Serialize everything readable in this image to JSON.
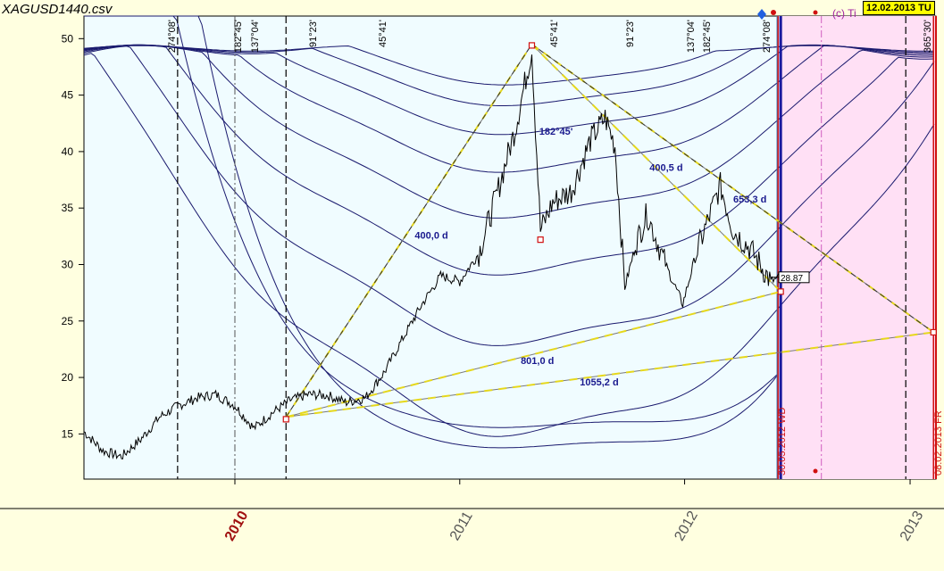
{
  "window": {
    "file_title": "XAGUSD1440.csv",
    "date_badge": "12.02.2013 TU",
    "copyright": "(c) Ti"
  },
  "colors": {
    "background": "#ffffe0",
    "plot_background": "#f0fcff",
    "arc": "#1a1a6e",
    "trendline": "#e6d81c",
    "forecast_zone": "#ffe0f5",
    "marker_red": "#d01010",
    "label_blue": "#1a1a8e"
  },
  "chart_data": {
    "type": "line",
    "title": "",
    "xlabel": "",
    "ylabel": "",
    "ylim": [
      11,
      52
    ],
    "xlim": [
      "2009-05-01",
      "2013-02-12"
    ],
    "y_ticks": [
      15,
      20,
      25,
      30,
      35,
      40,
      45,
      50
    ],
    "x_ticks": [
      {
        "label": "2010",
        "date": "2010-01-01",
        "highlight": true
      },
      {
        "label": "2011",
        "date": "2011-01-01",
        "highlight": false
      },
      {
        "label": "2012",
        "date": "2012-01-01",
        "highlight": false
      },
      {
        "label": "2013",
        "date": "2013-01-01",
        "highlight": false
      }
    ],
    "price_series": {
      "name": "",
      "points": [
        [
          "2009-05-01",
          15.2
        ],
        [
          "2009-06-01",
          13.5
        ],
        [
          "2009-07-01",
          13.0
        ],
        [
          "2009-08-01",
          14.5
        ],
        [
          "2009-09-01",
          16.5
        ],
        [
          "2009-10-01",
          17.5
        ],
        [
          "2009-11-01",
          18.2
        ],
        [
          "2009-12-01",
          18.5
        ],
        [
          "2010-01-01",
          17.5
        ],
        [
          "2010-02-01",
          15.5
        ],
        [
          "2010-03-01",
          16.8
        ],
        [
          "2010-04-01",
          18.0
        ],
        [
          "2010-05-01",
          18.5
        ],
        [
          "2010-06-01",
          18.4
        ],
        [
          "2010-07-01",
          17.8
        ],
        [
          "2010-08-01",
          18.2
        ],
        [
          "2010-09-01",
          20.5
        ],
        [
          "2010-10-01",
          23.5
        ],
        [
          "2010-11-01",
          26.5
        ],
        [
          "2010-12-01",
          29.0
        ],
        [
          "2011-01-01",
          28.5
        ],
        [
          "2011-02-01",
          31.0
        ],
        [
          "2011-03-01",
          36.0
        ],
        [
          "2011-04-01",
          42.0
        ],
        [
          "2011-04-28",
          49.0
        ],
        [
          "2011-05-12",
          33.0
        ],
        [
          "2011-06-01",
          35.5
        ],
        [
          "2011-07-01",
          36.5
        ],
        [
          "2011-08-01",
          41.0
        ],
        [
          "2011-08-25",
          43.0
        ],
        [
          "2011-09-10",
          40.5
        ],
        [
          "2011-09-26",
          28.0
        ],
        [
          "2011-10-15",
          32.0
        ],
        [
          "2011-11-01",
          34.5
        ],
        [
          "2011-12-01",
          30.0
        ],
        [
          "2011-12-29",
          26.5
        ],
        [
          "2012-01-20",
          31.0
        ],
        [
          "2012-02-28",
          37.0
        ],
        [
          "2012-03-20",
          33.0
        ],
        [
          "2012-04-15",
          31.5
        ],
        [
          "2012-05-20",
          28.5
        ],
        [
          "2012-06-05",
          28.87
        ]
      ]
    },
    "gann_arcs": [
      {
        "center": "2011-04-28",
        "rmin": 3.2,
        "base": 49.2,
        "kind": "high"
      },
      {
        "center": "2011-04-28",
        "rmin": 5.0,
        "base": 49.2,
        "kind": "high"
      },
      {
        "center": "2011-04-28",
        "rmin": 7.5,
        "base": 49.2,
        "kind": "high"
      },
      {
        "center": "2011-04-28",
        "rmin": 10.8,
        "base": 49.2,
        "kind": "high"
      },
      {
        "center": "2011-04-28",
        "rmin": 14.8,
        "base": 49.2,
        "kind": "high"
      },
      {
        "center": "2011-04-28",
        "rmin": 19.8,
        "base": 49.2,
        "kind": "high"
      },
      {
        "center": "2011-04-28",
        "rmin": 26.0,
        "base": 49.2,
        "kind": "high"
      },
      {
        "center": "2011-04-28",
        "rmin": 34.0,
        "base": 49.2,
        "kind": "high"
      }
    ],
    "vertical_markers": [
      {
        "date": "2009-09-30",
        "label": "274°08'",
        "style": "dash"
      },
      {
        "date": "2010-01-01",
        "label": "182°45'",
        "style": "dashdot"
      },
      {
        "date": "2010-03-25",
        "label": "137°04'",
        "style": "dash"
      },
      {
        "date": "2012-05-30",
        "label": "274°08'",
        "style": "solid-blue"
      },
      {
        "date": "2012-06-05",
        "label": "",
        "style": "thick-blue"
      },
      {
        "date": "2012-08-10",
        "label": "",
        "style": "dashdot-pink"
      },
      {
        "date": "2012-12-25",
        "label": "",
        "style": "dash"
      },
      {
        "date": "2013-02-08",
        "label": "365°30'",
        "style": "solid-red"
      }
    ],
    "top_angle_labels": [
      {
        "x": 196,
        "text": "274°08'"
      },
      {
        "x": 270,
        "text": "182°45'"
      },
      {
        "x": 289,
        "text": "137°04'"
      },
      {
        "x": 354,
        "text": "91°23'"
      },
      {
        "x": 432,
        "text": "45°41'"
      },
      {
        "x": 624,
        "text": "45°41'"
      },
      {
        "x": 709,
        "text": "91°23'"
      },
      {
        "x": 777,
        "text": "137°04'"
      },
      {
        "x": 795,
        "text": "182°45'"
      },
      {
        "x": 862,
        "text": "274°08'"
      },
      {
        "x": 1042,
        "text": "365°30'"
      }
    ],
    "trendlines": [
      {
        "from": [
          "2010-03-25",
          16.5
        ],
        "to": [
          "2011-04-28",
          49.5
        ],
        "style": "yellow"
      },
      {
        "from": [
          "2011-04-28",
          49.5
        ],
        "to": [
          "2013-02-08",
          24.0
        ],
        "style": "yellow"
      },
      {
        "from": [
          "2011-04-28",
          49.5
        ],
        "to": [
          "2012-06-05",
          27.6
        ],
        "style": "yellow"
      },
      {
        "from": [
          "2010-03-25",
          16.5
        ],
        "to": [
          "2012-06-05",
          27.6
        ],
        "style": "yellow"
      },
      {
        "from": [
          "2010-03-25",
          16.5
        ],
        "to": [
          "2013-02-08",
          24.0
        ],
        "style": "yellow"
      },
      {
        "from": [
          "2010-03-25",
          16.5
        ],
        "to": [
          "2011-04-28",
          49.5
        ],
        "style": "dash"
      },
      {
        "from": [
          "2011-04-28",
          49.5
        ],
        "to": [
          "2013-02-08",
          24.0
        ],
        "style": "dash"
      }
    ],
    "annotations": [
      {
        "text": "182°45'",
        "date": "2011-05-10",
        "y": 41.5
      },
      {
        "text": "400,5 d",
        "date": "2011-11-05",
        "y": 38.3
      },
      {
        "text": "653,3 d",
        "date": "2012-03-20",
        "y": 35.5
      },
      {
        "text": "400,0 d",
        "date": "2010-10-20",
        "y": 32.3
      },
      {
        "text": "801,0 d",
        "date": "2011-04-10",
        "y": 21.2
      },
      {
        "text": "1055,2 d",
        "date": "2011-07-15",
        "y": 19.3
      }
    ],
    "pivot_markers": [
      {
        "date": "2010-03-25",
        "y": 16.3
      },
      {
        "date": "2011-04-28",
        "y": 49.4
      },
      {
        "date": "2011-05-12",
        "y": 32.2
      },
      {
        "date": "2012-06-05",
        "y": 27.6
      },
      {
        "date": "2013-02-08",
        "y": 24.0
      }
    ],
    "price_tag": {
      "text": "28.87",
      "y": 28.87
    },
    "forecast_zone": {
      "from": "2012-05-30",
      "to": "2013-02-12"
    },
    "rotated_date_labels": [
      {
        "date": "2012-05-30",
        "text": "30.05.2012 WD"
      },
      {
        "date": "2013-02-08",
        "text": "08.02.2013 FR"
      }
    ]
  }
}
